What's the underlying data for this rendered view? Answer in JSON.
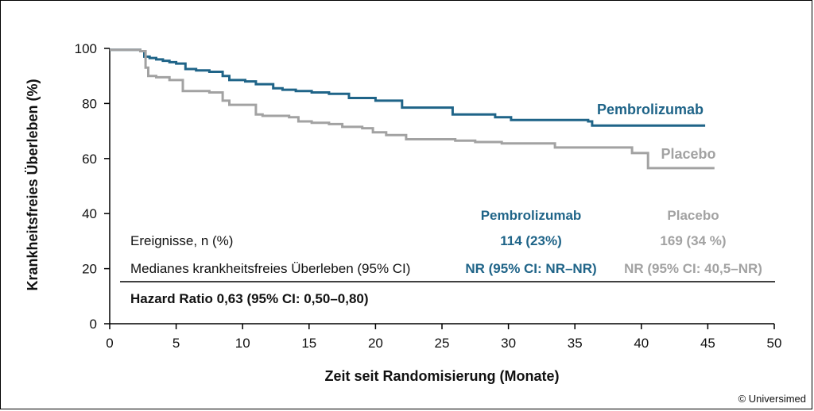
{
  "chart_data": {
    "type": "line",
    "step": true,
    "xlabel": "Zeit seit Randomisierung (Monate)",
    "ylabel": "Krankheitsfreies Überleben (%)",
    "xlim": [
      0,
      50
    ],
    "ylim": [
      0,
      100
    ],
    "xticks": [
      "0",
      "5",
      "10",
      "15",
      "20",
      "25",
      "30",
      "35",
      "40",
      "45",
      "50"
    ],
    "yticks": [
      "0",
      "20",
      "40",
      "60",
      "80",
      "100"
    ],
    "series": [
      {
        "name": "Pembrolizumab",
        "color": "#1f6488",
        "x": [
          0,
          2.3,
          2.6,
          3.0,
          3.5,
          4.0,
          4.5,
          5.0,
          5.7,
          6.5,
          7.5,
          8.5,
          9.0,
          10.2,
          11.0,
          12.3,
          13.0,
          14.0,
          15.2,
          16.5,
          18.0,
          20.0,
          22.0,
          25.8,
          29.0,
          30.2,
          36.0,
          36.3,
          44.8
        ],
        "y": [
          99.5,
          99.0,
          97.0,
          96.5,
          96.0,
          95.5,
          95.0,
          94.5,
          92.5,
          92.0,
          91.5,
          90.0,
          88.5,
          88.0,
          87.0,
          85.5,
          85.0,
          84.5,
          84.0,
          83.5,
          82.0,
          81.0,
          78.5,
          76.0,
          75.0,
          74.0,
          73.5,
          72.0,
          72.0
        ]
      },
      {
        "name": "Placebo",
        "color": "#a2a2a2",
        "x": [
          0,
          2.3,
          2.7,
          2.9,
          3.5,
          4.5,
          5.5,
          6.0,
          7.5,
          8.5,
          9.0,
          11.0,
          11.5,
          13.5,
          14.2,
          15.2,
          16.5,
          17.5,
          19.0,
          19.8,
          20.8,
          22.3,
          24.5,
          26.0,
          27.5,
          29.5,
          33.5,
          36.0,
          39.3,
          40.5,
          45.5
        ],
        "y": [
          99.5,
          99.0,
          93.0,
          90.0,
          89.5,
          88.5,
          84.5,
          84.5,
          84.0,
          81.0,
          79.5,
          76.0,
          75.5,
          75.0,
          73.5,
          73.0,
          72.5,
          71.5,
          71.0,
          69.5,
          68.5,
          67.0,
          67.0,
          66.5,
          66.0,
          65.5,
          64.0,
          64.0,
          62.0,
          56.5,
          56.5
        ]
      }
    ],
    "series_labels": [
      "Pembrolizumab",
      "Placebo"
    ],
    "table": {
      "col_headers": [
        "Pembrolizumab",
        "Placebo"
      ],
      "rows": [
        {
          "label": "Ereignisse, n (%)",
          "values": [
            "114 (23%)",
            "169 (34 %)"
          ]
        },
        {
          "label": "Medianes krankheitsfreies Überleben (95% CI)",
          "values": [
            "NR (95% CI: NR–NR)",
            "NR (95% CI:  40,5–NR)"
          ]
        }
      ],
      "summary": "Hazard Ratio 0,63 (95% CI: 0,50–0,80)"
    }
  },
  "copyright": "© Universimed"
}
